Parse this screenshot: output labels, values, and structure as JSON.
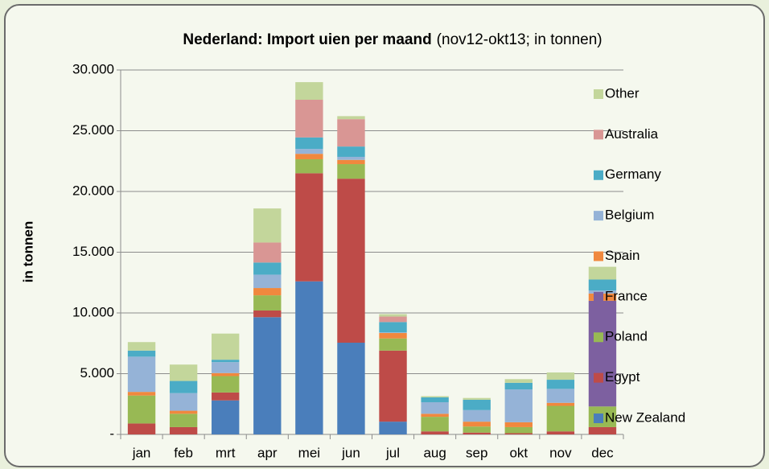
{
  "chart_data": {
    "type": "stacked-bar",
    "title": "Nederland: Import uien per maand",
    "subtitle": "(nov12-okt13; in tonnen)",
    "y_label": "in tonnen",
    "categories": [
      "jan",
      "feb",
      "mrt",
      "apr",
      "mei",
      "jun",
      "jul",
      "aug",
      "sep",
      "okt",
      "nov",
      "dec"
    ],
    "series": [
      {
        "name": "New Zealand",
        "color": "#4a7ebb",
        "values": [
          0,
          0,
          2800,
          9650,
          12600,
          7550,
          1050,
          0,
          0,
          0,
          0,
          0
        ]
      },
      {
        "name": "Egypt",
        "color": "#be4b48",
        "values": [
          900,
          600,
          650,
          550,
          8900,
          13500,
          5850,
          250,
          150,
          100,
          250,
          600
        ]
      },
      {
        "name": "Poland",
        "color": "#98b954",
        "values": [
          2300,
          1100,
          1350,
          1250,
          1150,
          1200,
          1000,
          1200,
          500,
          500,
          2100,
          1700
        ]
      },
      {
        "name": "France",
        "color": "#7d60a0",
        "values": [
          0,
          0,
          0,
          0,
          0,
          0,
          0,
          0,
          0,
          0,
          0,
          8700
        ]
      },
      {
        "name": "Spain",
        "color": "#f0883e",
        "values": [
          300,
          250,
          250,
          600,
          450,
          350,
          450,
          250,
          400,
          400,
          250,
          600
        ]
      },
      {
        "name": "Belgium",
        "color": "#95b3d7",
        "values": [
          2900,
          1450,
          900,
          1100,
          400,
          250,
          50,
          950,
          950,
          2700,
          1150,
          250
        ]
      },
      {
        "name": "Germany",
        "color": "#4bacc6",
        "values": [
          500,
          1000,
          200,
          1000,
          950,
          850,
          850,
          400,
          850,
          550,
          750,
          900
        ]
      },
      {
        "name": "Australia",
        "color": "#d99694",
        "values": [
          0,
          0,
          0,
          1650,
          3100,
          2250,
          450,
          0,
          0,
          0,
          0,
          0
        ]
      },
      {
        "name": "Other",
        "color": "#c3d69b",
        "values": [
          700,
          1350,
          2150,
          2800,
          1450,
          250,
          200,
          100,
          150,
          300,
          600,
          1050
        ]
      }
    ],
    "ylim": [
      0,
      30000
    ],
    "yticks": [
      {
        "value": 0,
        "label": "-"
      },
      {
        "value": 5000,
        "label": "5.000"
      },
      {
        "value": 10000,
        "label": "10.000"
      },
      {
        "value": 15000,
        "label": "15.000"
      },
      {
        "value": 20000,
        "label": "20.000"
      },
      {
        "value": 25000,
        "label": "25.000"
      },
      {
        "value": 30000,
        "label": "30.000"
      }
    ],
    "grid": true,
    "legend": "right"
  }
}
